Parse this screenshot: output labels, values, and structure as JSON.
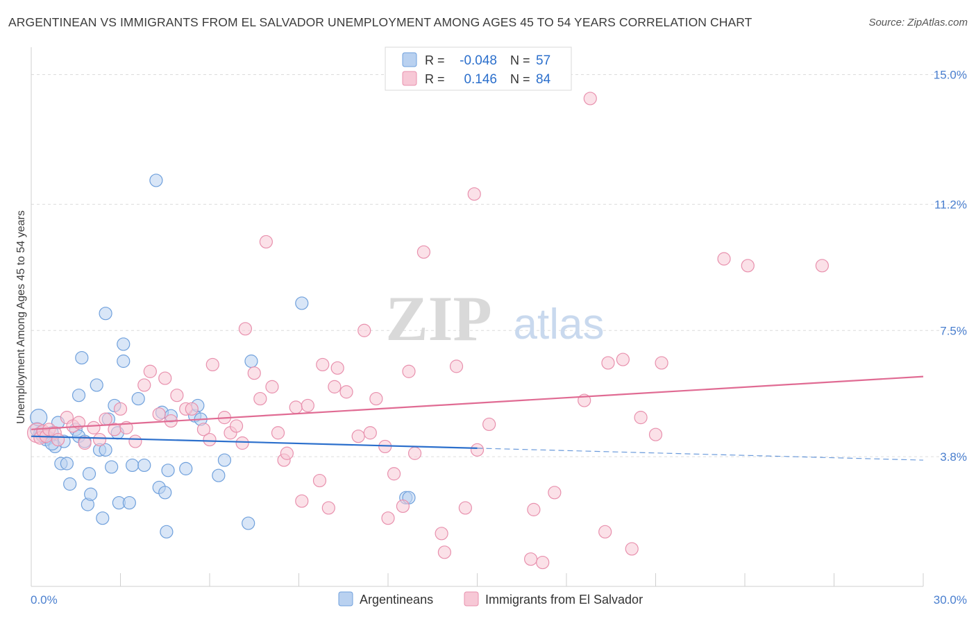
{
  "chart_data": {
    "type": "scatter",
    "title": "ARGENTINEAN VS IMMIGRANTS FROM EL SALVADOR UNEMPLOYMENT AMONG AGES 45 TO 54 YEARS CORRELATION CHART",
    "source": "Source: ZipAtlas.com",
    "ylabel": "Unemployment Among Ages 45 to 54 years",
    "xlabel": "",
    "xlim": [
      0,
      30
    ],
    "ylim": [
      0,
      15.6
    ],
    "x_tick_labels": [
      "0.0%",
      "30.0%"
    ],
    "y_ticks": [
      3.8,
      7.5,
      11.2,
      15.0
    ],
    "y_tick_labels": [
      "3.8%",
      "7.5%",
      "11.2%",
      "15.0%"
    ],
    "grid": "horizontal dashed",
    "watermark": {
      "zip": "ZIP",
      "atlas": "atlas"
    },
    "legend_box": {
      "rows": [
        {
          "r_label": "R =",
          "r_value": "-0.048",
          "n_label": "N =",
          "n_value": "57"
        },
        {
          "r_label": "R =",
          "r_value": "0.146",
          "n_label": "N =",
          "n_value": "84"
        }
      ]
    },
    "series": [
      {
        "name": "Argentineans",
        "color": "#6fa0dc",
        "fill": "#b9d1f0",
        "line_color": "#2b6fcc",
        "trend": {
          "x0": 0,
          "y0": 4.4,
          "x1": 15,
          "y1": 4.05,
          "dashed_to_x": 30,
          "dashed_to_y": 3.7
        },
        "points": [
          [
            0.2,
            4.6
          ],
          [
            0.3,
            4.5
          ],
          [
            0.4,
            4.4
          ],
          [
            0.5,
            4.3
          ],
          [
            0.6,
            4.35
          ],
          [
            0.7,
            4.5
          ],
          [
            0.8,
            4.1
          ],
          [
            0.9,
            4.8
          ],
          [
            1.0,
            3.6
          ],
          [
            1.1,
            4.25
          ],
          [
            1.2,
            3.6
          ],
          [
            1.3,
            3.0
          ],
          [
            1.5,
            4.6
          ],
          [
            1.6,
            4.4
          ],
          [
            1.6,
            5.6
          ],
          [
            1.7,
            6.7
          ],
          [
            1.8,
            4.25
          ],
          [
            1.9,
            2.4
          ],
          [
            1.95,
            3.3
          ],
          [
            2.0,
            2.7
          ],
          [
            2.2,
            5.9
          ],
          [
            2.3,
            4.0
          ],
          [
            2.4,
            2.0
          ],
          [
            2.5,
            8.0
          ],
          [
            2.5,
            4.0
          ],
          [
            2.6,
            4.9
          ],
          [
            2.7,
            3.5
          ],
          [
            2.8,
            5.3
          ],
          [
            2.9,
            4.5
          ],
          [
            2.95,
            2.45
          ],
          [
            3.1,
            7.1
          ],
          [
            3.1,
            6.6
          ],
          [
            3.3,
            2.45
          ],
          [
            3.4,
            3.55
          ],
          [
            3.6,
            5.5
          ],
          [
            3.8,
            3.55
          ],
          [
            4.2,
            11.9
          ],
          [
            4.3,
            2.9
          ],
          [
            4.4,
            5.1
          ],
          [
            4.5,
            2.75
          ],
          [
            4.55,
            1.6
          ],
          [
            4.6,
            3.4
          ],
          [
            4.7,
            5.0
          ],
          [
            5.2,
            3.45
          ],
          [
            5.5,
            5.0
          ],
          [
            5.6,
            5.3
          ],
          [
            5.7,
            4.9
          ],
          [
            6.3,
            3.25
          ],
          [
            6.5,
            3.7
          ],
          [
            7.3,
            1.85
          ],
          [
            7.4,
            6.6
          ],
          [
            9.1,
            8.3
          ],
          [
            12.6,
            2.6
          ],
          [
            12.7,
            2.6
          ],
          [
            0.25,
            4.95
          ],
          [
            0.4,
            4.45
          ],
          [
            0.7,
            4.2
          ]
        ],
        "sizes": [
          10,
          9,
          9,
          9,
          9,
          9,
          9,
          9,
          9,
          9,
          9,
          9,
          9,
          9,
          9,
          9,
          9,
          9,
          9,
          9,
          9,
          9,
          9,
          9,
          9,
          9,
          9,
          9,
          9,
          9,
          9,
          9,
          9,
          9,
          9,
          9,
          9,
          9,
          9,
          9,
          9,
          9,
          9,
          9,
          9,
          9,
          9,
          9,
          9,
          9,
          9,
          9,
          9,
          9,
          12,
          11,
          10
        ]
      },
      {
        "name": "Immigrants from El Salvador",
        "color": "#e890ad",
        "fill": "#f7c8d6",
        "line_color": "#e06b93",
        "trend": {
          "x0": 0,
          "y0": 4.6,
          "x1": 30,
          "y1": 6.15
        },
        "points": [
          [
            0.2,
            4.5
          ],
          [
            0.3,
            4.35
          ],
          [
            0.4,
            4.55
          ],
          [
            0.5,
            4.4
          ],
          [
            0.6,
            4.6
          ],
          [
            0.8,
            4.5
          ],
          [
            1.2,
            4.95
          ],
          [
            1.4,
            4.7
          ],
          [
            1.6,
            4.8
          ],
          [
            1.8,
            4.2
          ],
          [
            2.1,
            4.65
          ],
          [
            2.3,
            4.3
          ],
          [
            2.5,
            4.9
          ],
          [
            2.8,
            4.6
          ],
          [
            3.0,
            5.2
          ],
          [
            3.2,
            4.65
          ],
          [
            3.5,
            4.25
          ],
          [
            3.8,
            5.9
          ],
          [
            4.0,
            6.3
          ],
          [
            4.3,
            5.05
          ],
          [
            4.5,
            6.1
          ],
          [
            4.7,
            4.85
          ],
          [
            4.9,
            5.6
          ],
          [
            5.2,
            5.2
          ],
          [
            5.4,
            5.2
          ],
          [
            5.8,
            4.6
          ],
          [
            6.0,
            4.3
          ],
          [
            6.1,
            6.5
          ],
          [
            6.5,
            4.95
          ],
          [
            6.7,
            4.5
          ],
          [
            6.9,
            4.7
          ],
          [
            7.1,
            4.2
          ],
          [
            7.2,
            7.55
          ],
          [
            7.5,
            6.25
          ],
          [
            7.7,
            5.5
          ],
          [
            7.9,
            10.1
          ],
          [
            8.1,
            5.85
          ],
          [
            8.3,
            4.5
          ],
          [
            8.5,
            3.7
          ],
          [
            8.6,
            3.9
          ],
          [
            8.9,
            5.25
          ],
          [
            9.1,
            2.5
          ],
          [
            9.3,
            5.3
          ],
          [
            9.7,
            3.1
          ],
          [
            9.8,
            6.5
          ],
          [
            10.0,
            2.3
          ],
          [
            10.2,
            5.85
          ],
          [
            10.3,
            6.4
          ],
          [
            10.6,
            5.7
          ],
          [
            11.0,
            4.4
          ],
          [
            11.2,
            7.5
          ],
          [
            11.4,
            4.5
          ],
          [
            11.6,
            5.5
          ],
          [
            11.9,
            4.1
          ],
          [
            12.0,
            2.0
          ],
          [
            12.2,
            3.3
          ],
          [
            12.5,
            2.35
          ],
          [
            12.7,
            6.3
          ],
          [
            12.9,
            3.9
          ],
          [
            13.2,
            9.8
          ],
          [
            13.8,
            1.55
          ],
          [
            13.9,
            1.0
          ],
          [
            14.3,
            6.45
          ],
          [
            14.6,
            2.3
          ],
          [
            14.9,
            11.5
          ],
          [
            15.0,
            4.0
          ],
          [
            15.4,
            4.75
          ],
          [
            16.8,
            0.8
          ],
          [
            16.9,
            2.25
          ],
          [
            17.2,
            0.7
          ],
          [
            17.6,
            2.75
          ],
          [
            18.6,
            5.45
          ],
          [
            18.8,
            14.3
          ],
          [
            19.3,
            1.6
          ],
          [
            19.4,
            6.55
          ],
          [
            19.9,
            6.65
          ],
          [
            20.2,
            1.1
          ],
          [
            20.5,
            4.95
          ],
          [
            21.0,
            4.45
          ],
          [
            21.2,
            6.55
          ],
          [
            23.3,
            9.6
          ],
          [
            24.1,
            9.4
          ],
          [
            26.6,
            9.4
          ],
          [
            0.9,
            4.3
          ]
        ],
        "sizes": [
          14,
          9,
          9,
          9,
          9,
          9,
          9,
          9,
          9,
          9,
          9,
          9,
          9,
          9,
          9,
          9,
          9,
          9,
          9,
          9,
          9,
          9,
          9,
          9,
          9,
          9,
          9,
          9,
          9,
          9,
          9,
          9,
          9,
          9,
          9,
          9,
          9,
          9,
          9,
          9,
          9,
          9,
          9,
          9,
          9,
          9,
          9,
          9,
          9,
          9,
          9,
          9,
          9,
          9,
          9,
          9,
          9,
          9,
          9,
          9,
          9,
          9,
          9,
          9,
          9,
          9,
          9,
          9,
          9,
          9,
          9,
          9,
          9,
          9,
          9,
          9,
          9,
          9,
          9,
          9,
          9,
          9,
          9,
          9
        ]
      }
    ]
  }
}
